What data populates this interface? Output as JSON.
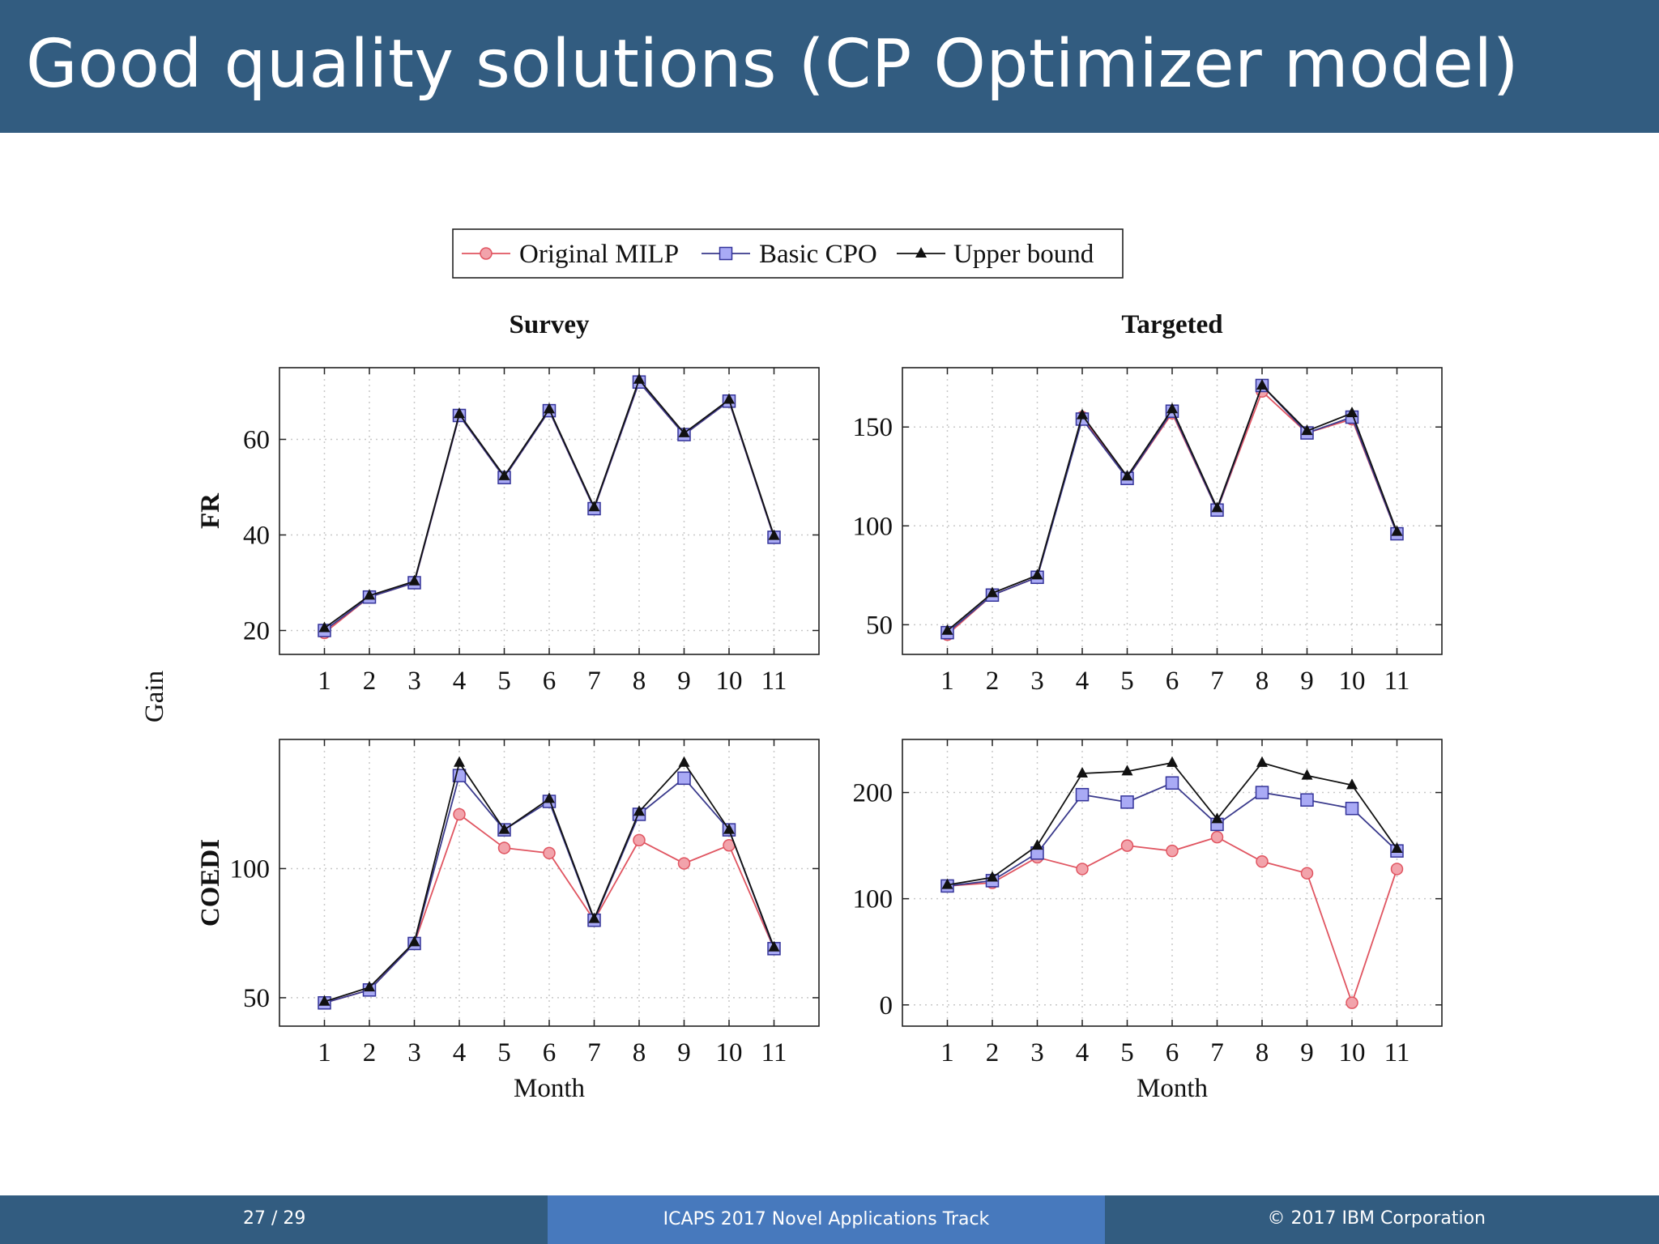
{
  "slide": {
    "title": "Good quality solutions (CP Optimizer model)"
  },
  "footer": {
    "page": "27 / 29",
    "event": "ICAPS 2017 Novel Applications Track",
    "copyright": "© 2017 IBM Corporation"
  },
  "legend": [
    "Original MILP",
    "Basic CPO",
    "Upper bound"
  ],
  "colors": {
    "milp": "#e05561",
    "cpo": "#7b7cf0",
    "ub": "#111111",
    "header": "#325c80",
    "footer_mid": "#4779bd"
  },
  "figure_labels": {
    "col_titles": [
      "Survey",
      "Targeted"
    ],
    "row_labels": [
      "FR",
      "COEDI"
    ],
    "shared_ylabel": "Gain",
    "xlabel": "Month"
  },
  "chart_data": [
    {
      "type": "line",
      "title": "Survey",
      "ylabel": "FR",
      "xlabel": "",
      "x": [
        1,
        2,
        3,
        4,
        5,
        6,
        7,
        8,
        9,
        10,
        11
      ],
      "ylim": [
        15,
        75
      ],
      "yticks": [
        20,
        40,
        60
      ],
      "grid": true,
      "series": [
        {
          "name": "Original MILP",
          "values": [
            19.5,
            27,
            30,
            65,
            52,
            66,
            45.5,
            72,
            61,
            68,
            39.5
          ]
        },
        {
          "name": "Basic CPO",
          "values": [
            20,
            27,
            30,
            65,
            52,
            66,
            45.5,
            72,
            61,
            68,
            39.5
          ]
        },
        {
          "name": "Upper bound",
          "values": [
            20.5,
            27.3,
            30.3,
            65.3,
            52.3,
            66.3,
            45.8,
            72.5,
            61.3,
            68.3,
            39.8
          ]
        }
      ]
    },
    {
      "type": "line",
      "title": "Targeted",
      "ylabel": "",
      "xlabel": "",
      "x": [
        1,
        2,
        3,
        4,
        5,
        6,
        7,
        8,
        9,
        10,
        11
      ],
      "ylim": [
        35,
        180
      ],
      "yticks": [
        50,
        100,
        150
      ],
      "grid": true,
      "series": [
        {
          "name": "Original MILP",
          "values": [
            45,
            65,
            74,
            155,
            124,
            157,
            108,
            168,
            147,
            154,
            96
          ]
        },
        {
          "name": "Basic CPO",
          "values": [
            46,
            65,
            74,
            154,
            124,
            158,
            108,
            171,
            147,
            155,
            96
          ]
        },
        {
          "name": "Upper bound",
          "values": [
            47,
            66,
            75,
            156,
            125,
            159,
            109,
            171,
            148,
            157,
            97
          ]
        }
      ]
    },
    {
      "type": "line",
      "title": "",
      "ylabel": "COEDI",
      "xlabel": "Month",
      "x": [
        1,
        2,
        3,
        4,
        5,
        6,
        7,
        8,
        9,
        10,
        11
      ],
      "ylim": [
        39,
        150
      ],
      "yticks": [
        50,
        100
      ],
      "grid": true,
      "series": [
        {
          "name": "Original MILP",
          "values": [
            48,
            53,
            71,
            121,
            108,
            106,
            80,
            111,
            102,
            109,
            69
          ]
        },
        {
          "name": "Basic CPO",
          "values": [
            48,
            53,
            71,
            136,
            115,
            126,
            80,
            121,
            135,
            115,
            69
          ]
        },
        {
          "name": "Upper bound",
          "values": [
            48.5,
            54,
            71.5,
            141,
            115,
            127,
            80.5,
            122,
            141,
            115,
            69.5
          ]
        }
      ]
    },
    {
      "type": "line",
      "title": "",
      "ylabel": "",
      "xlabel": "Month",
      "x": [
        1,
        2,
        3,
        4,
        5,
        6,
        7,
        8,
        9,
        10,
        11
      ],
      "ylim": [
        -20,
        250
      ],
      "yticks": [
        0,
        100,
        200
      ],
      "grid": true,
      "series": [
        {
          "name": "Original MILP",
          "values": [
            112,
            115,
            139,
            128,
            150,
            145,
            158,
            135,
            124,
            2,
            128
          ]
        },
        {
          "name": "Basic CPO",
          "values": [
            112,
            117,
            143,
            198,
            191,
            209,
            170,
            200,
            193,
            185,
            145
          ]
        },
        {
          "name": "Upper bound",
          "values": [
            113,
            120,
            150,
            218,
            220,
            228,
            175,
            228,
            216,
            207,
            147
          ]
        }
      ]
    }
  ]
}
